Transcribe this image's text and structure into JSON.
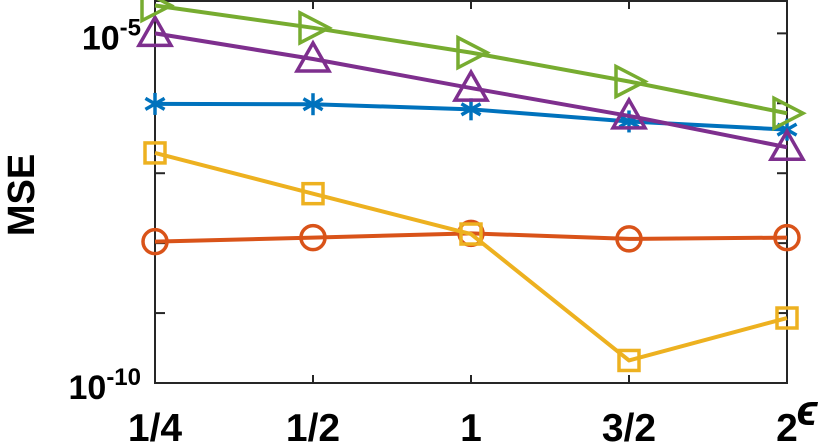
{
  "chart_data": {
    "type": "line",
    "title": "",
    "xlabel": "ϵ",
    "ylabel": "MSE",
    "categories": [
      "1/4",
      "1/2",
      "1",
      "3/2",
      "2"
    ],
    "y_scale": "log",
    "ylim": [
      1e-10,
      3e-05
    ],
    "y_ticks": [
      {
        "value": 1e-05,
        "base": "10",
        "exp": "-5"
      },
      {
        "value": 1e-10,
        "base": "10",
        "exp": "-10"
      }
    ],
    "grid": false,
    "legend": "none",
    "series": [
      {
        "color": "#77AC30",
        "marker": "triangle-right",
        "values": [
          2.5e-05,
          1.2e-05,
          5.3e-06,
          2.05e-06,
          7.2e-07
        ]
      },
      {
        "color": "#7E2F8E",
        "marker": "triangle-up",
        "values": [
          1e-05,
          4.3e-06,
          1.65e-06,
          6.6e-07,
          2.35e-07
        ]
      },
      {
        "color": "#0072BD",
        "marker": "asterisk",
        "values": [
          9.8e-07,
          9.7e-07,
          8.2e-07,
          5.5e-07,
          4.2e-07
        ]
      },
      {
        "color": "#EDB120",
        "marker": "square",
        "values": [
          1.95e-07,
          5.1e-08,
          1.35e-08,
          2.1e-10,
          8.5e-10
        ]
      },
      {
        "color": "#D95319",
        "marker": "circle",
        "values": [
          1.05e-08,
          1.2e-08,
          1.38e-08,
          1.15e-08,
          1.2e-08
        ]
      }
    ]
  }
}
